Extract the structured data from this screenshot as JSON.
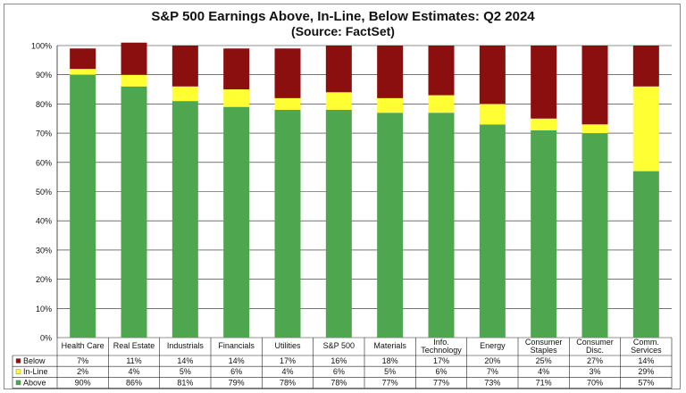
{
  "chart_data": {
    "type": "bar",
    "stacked": true,
    "title": "S&P 500 Earnings Above, In-Line, Below Estimates: Q2 2024",
    "subtitle": "(Source: FactSet)",
    "categories": [
      [
        "Health Care"
      ],
      [
        "Real Estate"
      ],
      [
        "Industrials"
      ],
      [
        "Financials"
      ],
      [
        "Utilities"
      ],
      [
        "S&P 500"
      ],
      [
        "Materials"
      ],
      [
        "Info.",
        "Technology"
      ],
      [
        "Energy"
      ],
      [
        "Consumer",
        "Staples"
      ],
      [
        "Consumer",
        "Disc."
      ],
      [
        "Comm.",
        "Services"
      ]
    ],
    "series": [
      {
        "name": "Above",
        "color": "#4ea64e",
        "values": [
          90,
          86,
          81,
          79,
          78,
          78,
          77,
          77,
          73,
          71,
          70,
          57
        ],
        "labels": [
          "90%",
          "86%",
          "81%",
          "79%",
          "78%",
          "78%",
          "77%",
          "77%",
          "73%",
          "71%",
          "70%",
          "57%"
        ]
      },
      {
        "name": "In-Line",
        "color": "#ffff33",
        "values": [
          2,
          4,
          5,
          6,
          4,
          6,
          5,
          6,
          7,
          4,
          3,
          29
        ],
        "labels": [
          "2%",
          "4%",
          "5%",
          "6%",
          "4%",
          "6%",
          "5%",
          "6%",
          "7%",
          "4%",
          "3%",
          "29%"
        ]
      },
      {
        "name": "Below",
        "color": "#8b0f0f",
        "values": [
          7,
          11,
          14,
          14,
          17,
          16,
          18,
          17,
          20,
          25,
          27,
          14
        ],
        "labels": [
          "7%",
          "11%",
          "14%",
          "14%",
          "17%",
          "16%",
          "18%",
          "17%",
          "20%",
          "25%",
          "27%",
          "14%"
        ]
      }
    ],
    "table_order": [
      "Below",
      "In-Line",
      "Above"
    ],
    "yticks": [
      "0%",
      "10%",
      "20%",
      "30%",
      "40%",
      "50%",
      "60%",
      "70%",
      "80%",
      "90%",
      "100%"
    ],
    "ylim": [
      0,
      100
    ],
    "grid": true,
    "legend": "data-table"
  }
}
